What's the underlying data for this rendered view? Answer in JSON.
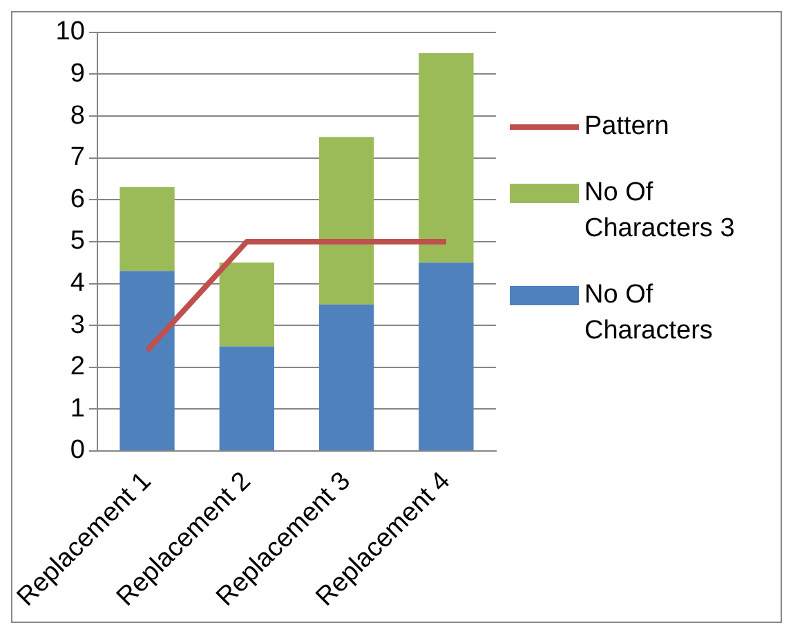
{
  "chart_data": {
    "type": "bar",
    "stacked": true,
    "categories": [
      "Replacement 1",
      "Replacement 2",
      "Replacement 3",
      "Replacement 4"
    ],
    "series": [
      {
        "name": "No Of Characters",
        "color": "#4f81bd",
        "values": [
          4.3,
          2.5,
          3.5,
          4.5
        ]
      },
      {
        "name": "No Of Characters 3",
        "color": "#9bbb59",
        "values": [
          2.0,
          2.0,
          4.0,
          5.0
        ]
      },
      {
        "name": "Pattern",
        "type": "line",
        "color": "#c0504d",
        "values": [
          2.4,
          5,
          5,
          5
        ]
      }
    ],
    "ylim": [
      0,
      10
    ],
    "yticks": [
      0,
      1,
      2,
      3,
      4,
      5,
      6,
      7,
      8,
      9,
      10
    ],
    "grid": "y",
    "legend": "right",
    "marker": "none"
  }
}
